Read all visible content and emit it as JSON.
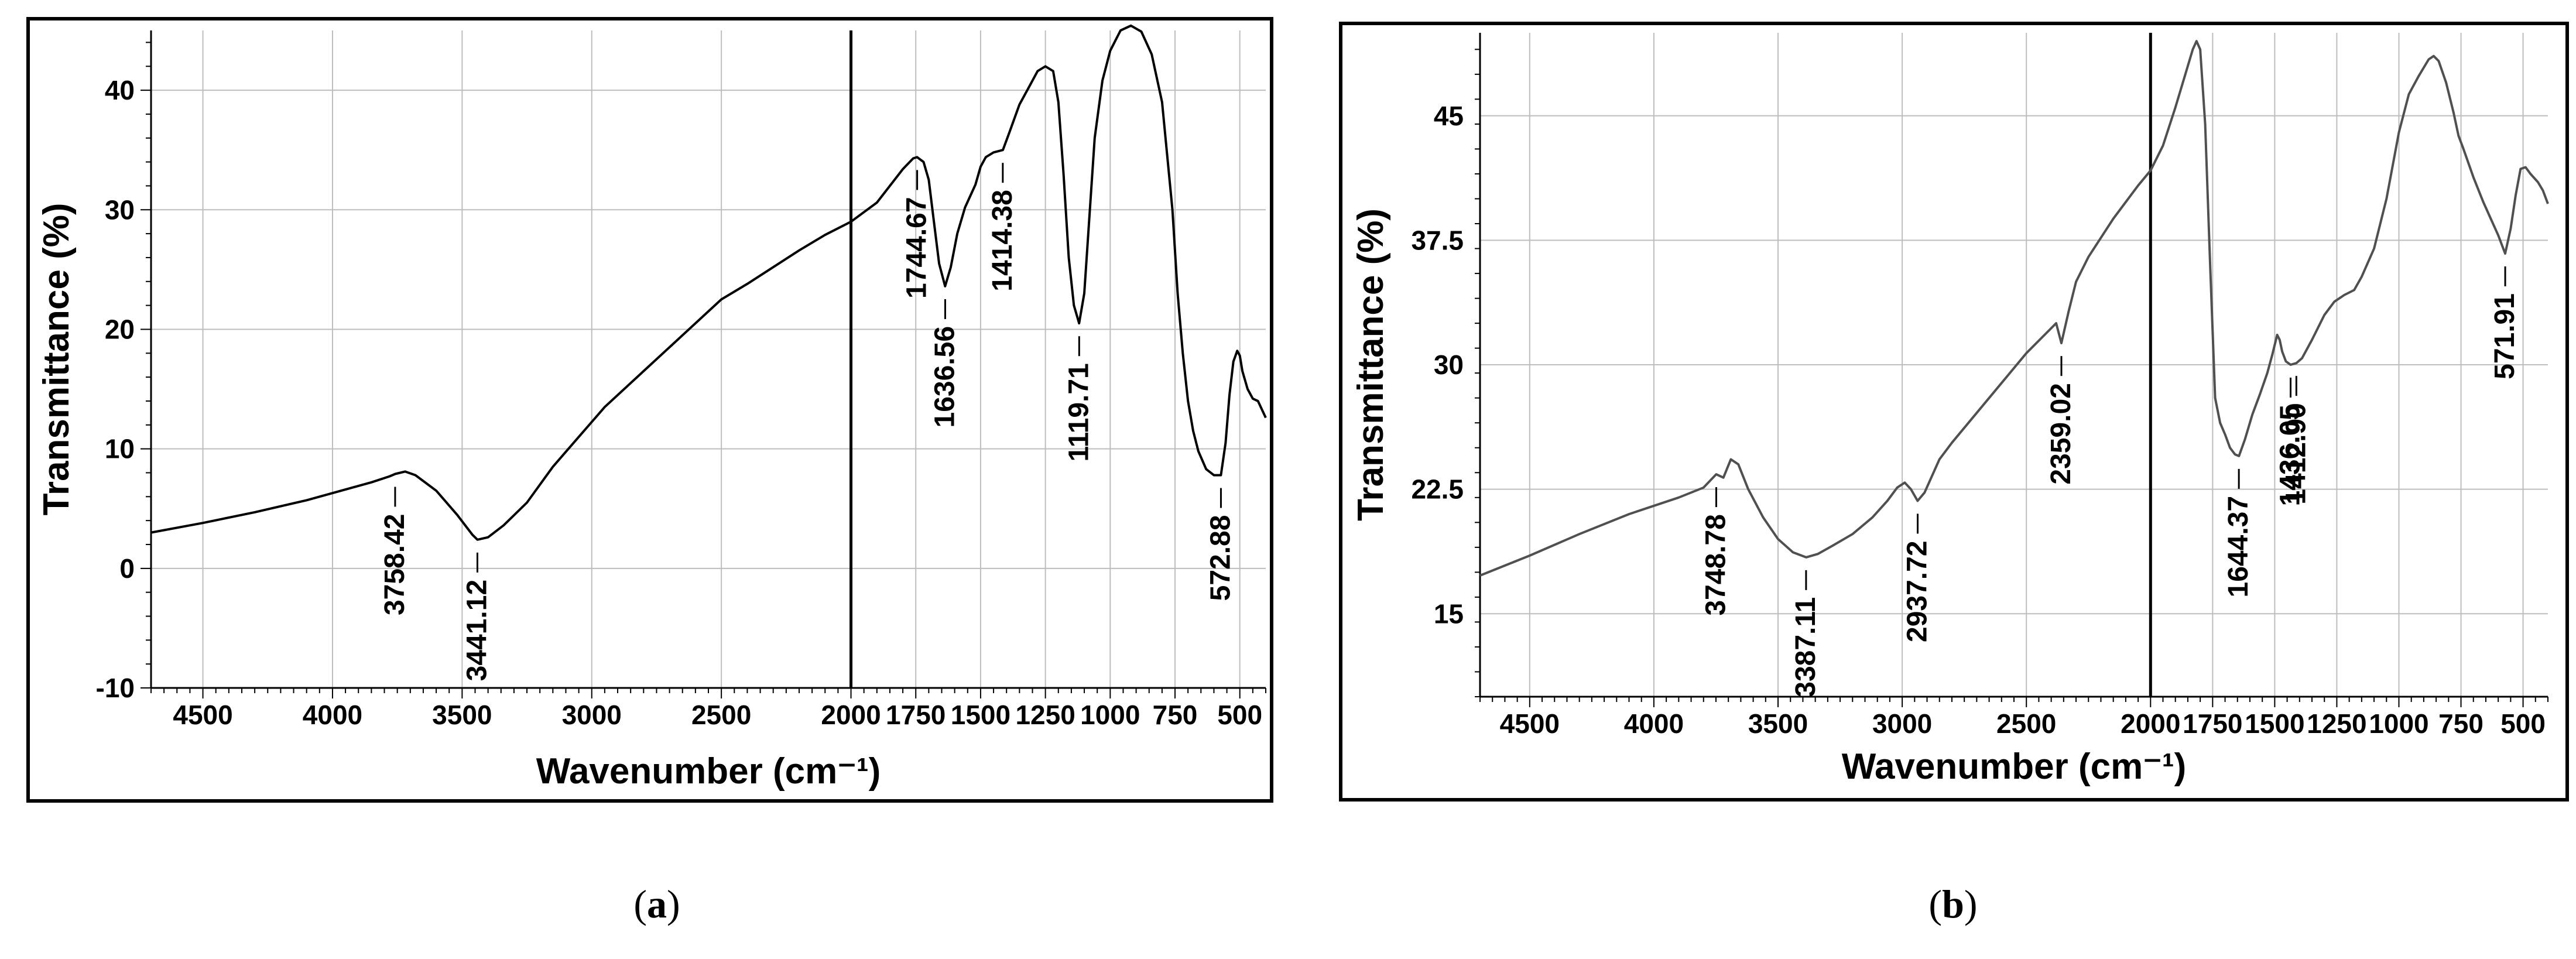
{
  "figure": {
    "panels": [
      {
        "label_open": "(",
        "label_letter": "a",
        "label_close": ")"
      },
      {
        "label_open": "(",
        "label_letter": "b",
        "label_close": ")"
      }
    ]
  },
  "chart_data": [
    {
      "type": "line",
      "panel": "a",
      "xlabel": "Wavenumber (cm⁻¹)",
      "ylabel": "Transmittance (%)",
      "xlim": [
        4700,
        400
      ],
      "ylim": [
        -10,
        45
      ],
      "x_reversed": true,
      "grid": true,
      "xticks": [
        4500,
        4000,
        3500,
        3000,
        2500,
        2000,
        1750,
        1500,
        1250,
        1000,
        750,
        500
      ],
      "yticks": [
        -10,
        0,
        10,
        20,
        30,
        40
      ],
      "reference_line_x": 2000,
      "series": [
        {
          "color": "#000000",
          "x": [
            4700,
            4500,
            4300,
            4100,
            3950,
            3850,
            3780,
            3758,
            3720,
            3680,
            3600,
            3520,
            3460,
            3441,
            3400,
            3340,
            3250,
            3150,
            3050,
            2950,
            2800,
            2650,
            2500,
            2400,
            2300,
            2200,
            2100,
            2000,
            1900,
            1850,
            1800,
            1760,
            1745,
            1720,
            1700,
            1680,
            1660,
            1637,
            1615,
            1590,
            1560,
            1520,
            1500,
            1480,
            1450,
            1414,
            1390,
            1350,
            1310,
            1280,
            1250,
            1220,
            1200,
            1180,
            1160,
            1140,
            1120,
            1100,
            1080,
            1060,
            1030,
            1000,
            960,
            920,
            880,
            840,
            800,
            760,
            740,
            720,
            700,
            680,
            660,
            630,
            600,
            573,
            555,
            540,
            525,
            510,
            500,
            490,
            470,
            450,
            430,
            400
          ],
          "y": [
            3.0,
            3.8,
            4.7,
            5.7,
            6.6,
            7.2,
            7.7,
            7.9,
            8.1,
            7.8,
            6.5,
            4.5,
            2.8,
            2.4,
            2.6,
            3.6,
            5.5,
            8.5,
            11.0,
            13.5,
            16.5,
            19.5,
            22.5,
            23.8,
            25.2,
            26.6,
            27.9,
            29.0,
            30.6,
            32.0,
            33.4,
            34.3,
            34.4,
            34.0,
            32.5,
            29.0,
            25.5,
            23.6,
            25.2,
            28.0,
            30.2,
            32.1,
            33.6,
            34.4,
            34.8,
            35.0,
            36.4,
            38.8,
            40.4,
            41.6,
            42.0,
            41.6,
            39.0,
            33.0,
            26.0,
            22.0,
            20.5,
            23.0,
            29.5,
            36.0,
            40.8,
            43.3,
            45.0,
            45.4,
            44.9,
            43.0,
            39.0,
            30.0,
            23.0,
            18.0,
            14.0,
            11.5,
            9.8,
            8.3,
            7.8,
            7.8,
            10.5,
            14.5,
            17.3,
            18.2,
            17.8,
            16.5,
            15.0,
            14.2,
            14.0,
            12.6
          ]
        }
      ],
      "annotations": [
        {
          "text": "3758.42",
          "x": 3758.42,
          "y": 7.9,
          "side": "below"
        },
        {
          "text": "3441.12",
          "x": 3441.12,
          "y": 2.4,
          "side": "below"
        },
        {
          "text": "1744.67",
          "x": 1744.67,
          "y": 34.4,
          "side": "below"
        },
        {
          "text": "1636.56",
          "x": 1636.56,
          "y": 23.6,
          "side": "below"
        },
        {
          "text": "1414.38",
          "x": 1414.38,
          "y": 35.0,
          "side": "below"
        },
        {
          "text": "1119.71",
          "x": 1119.71,
          "y": 20.5,
          "side": "below"
        },
        {
          "text": "572.88",
          "x": 572.88,
          "y": 7.8,
          "side": "below"
        }
      ]
    },
    {
      "type": "line",
      "panel": "b",
      "xlabel": "Wavenumber (cm⁻¹)",
      "ylabel": "Transmittance (%)",
      "xlim": [
        4700,
        400
      ],
      "ylim": [
        10,
        50
      ],
      "x_reversed": true,
      "grid": true,
      "xticks": [
        4500,
        4000,
        3500,
        3000,
        2500,
        2000,
        1750,
        1500,
        1250,
        1000,
        750,
        500
      ],
      "yticks": [
        15,
        22.5,
        30,
        37.5,
        45
      ],
      "ytick_labels": [
        "15",
        "22.5",
        "30",
        "37.5",
        "45"
      ],
      "reference_line_x": 2000,
      "series": [
        {
          "color": "#505050",
          "x": [
            4700,
            4500,
            4300,
            4100,
            3900,
            3800,
            3749,
            3720,
            3690,
            3660,
            3620,
            3560,
            3500,
            3440,
            3387,
            3340,
            3280,
            3200,
            3120,
            3060,
            3020,
            2990,
            2965,
            2938,
            2910,
            2880,
            2850,
            2800,
            2700,
            2600,
            2500,
            2420,
            2380,
            2359,
            2330,
            2300,
            2250,
            2150,
            2050,
            2000,
            1950,
            1900,
            1860,
            1830,
            1815,
            1800,
            1780,
            1760,
            1740,
            1720,
            1700,
            1680,
            1660,
            1644,
            1620,
            1590,
            1560,
            1530,
            1510,
            1490,
            1480,
            1470,
            1455,
            1436,
            1413,
            1390,
            1350,
            1300,
            1260,
            1220,
            1180,
            1150,
            1100,
            1050,
            1000,
            960,
            920,
            880,
            860,
            840,
            810,
            780,
            760,
            740,
            700,
            660,
            630,
            600,
            572,
            550,
            530,
            510,
            490,
            470,
            440,
            420,
            400
          ],
          "y": [
            17.3,
            18.5,
            19.8,
            21.0,
            22.0,
            22.6,
            23.4,
            23.2,
            24.3,
            24.0,
            22.5,
            20.8,
            19.5,
            18.7,
            18.4,
            18.6,
            19.1,
            19.8,
            20.8,
            21.8,
            22.6,
            22.9,
            22.5,
            21.8,
            22.3,
            23.3,
            24.3,
            25.3,
            27.1,
            28.9,
            30.7,
            31.9,
            32.5,
            31.3,
            33.2,
            35.0,
            36.5,
            38.8,
            40.8,
            41.7,
            43.2,
            45.5,
            47.5,
            49.0,
            49.5,
            49.0,
            44.5,
            36.0,
            28.0,
            26.5,
            25.8,
            25.0,
            24.6,
            24.5,
            25.5,
            27.0,
            28.2,
            29.5,
            30.6,
            31.8,
            31.5,
            30.8,
            30.2,
            30.0,
            30.1,
            30.4,
            31.5,
            33.0,
            33.8,
            34.2,
            34.5,
            35.3,
            37.0,
            40.0,
            44.0,
            46.3,
            47.4,
            48.4,
            48.6,
            48.3,
            47.0,
            45.2,
            43.8,
            43.0,
            41.3,
            39.8,
            38.8,
            37.8,
            36.7,
            38.2,
            40.2,
            41.8,
            41.9,
            41.5,
            41.0,
            40.5,
            39.7
          ]
        }
      ],
      "annotations": [
        {
          "text": "3748.78",
          "x": 3748.78,
          "y": 23.4,
          "side": "below"
        },
        {
          "text": "3387.11",
          "x": 3387.11,
          "y": 18.4,
          "side": "below"
        },
        {
          "text": "2937.72",
          "x": 2937.72,
          "y": 21.8,
          "side": "below"
        },
        {
          "text": "2359.02",
          "x": 2359.02,
          "y": 31.3,
          "side": "below"
        },
        {
          "text": "1644.37",
          "x": 1644.37,
          "y": 24.5,
          "side": "below"
        },
        {
          "text": "1436.05",
          "x": 1436.05,
          "y": 30.0,
          "side": "below"
        },
        {
          "text": "1412.90",
          "x": 1412.9,
          "y": 30.1,
          "side": "below"
        },
        {
          "text": "571.91",
          "x": 571.91,
          "y": 36.7,
          "side": "below"
        }
      ]
    }
  ]
}
